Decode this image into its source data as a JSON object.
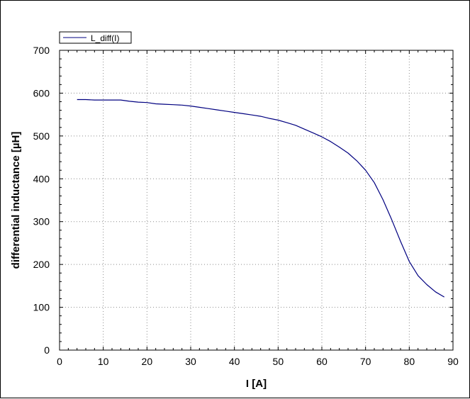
{
  "chart_data": {
    "type": "line",
    "title": "",
    "xlabel": "I [A]",
    "ylabel": "differential inductance [µH]",
    "xlim": [
      0,
      90
    ],
    "ylim": [
      0,
      700
    ],
    "xticks": [
      0,
      10,
      20,
      30,
      40,
      50,
      60,
      70,
      80,
      90
    ],
    "yticks": [
      0,
      100,
      200,
      300,
      400,
      500,
      600,
      700
    ],
    "grid": true,
    "legend_position": "top-left",
    "series": [
      {
        "name": "L_diff(I)",
        "color": "#000080",
        "x": [
          4,
          6,
          8,
          10,
          12,
          14,
          16,
          18,
          20,
          22,
          24,
          26,
          28,
          30,
          32,
          34,
          36,
          38,
          40,
          42,
          44,
          46,
          48,
          50,
          52,
          54,
          56,
          58,
          60,
          62,
          64,
          66,
          68,
          70,
          72,
          74,
          76,
          78,
          80,
          82,
          84,
          86,
          88
        ],
        "y": [
          585,
          585,
          584,
          584,
          584,
          584,
          581,
          579,
          578,
          575,
          574,
          573,
          572,
          570,
          567,
          564,
          561,
          558,
          555,
          552,
          549,
          546,
          541,
          537,
          531,
          525,
          516,
          507,
          498,
          487,
          474,
          460,
          442,
          420,
          391,
          351,
          304,
          254,
          207,
          174,
          153,
          136,
          124
        ]
      }
    ]
  }
}
